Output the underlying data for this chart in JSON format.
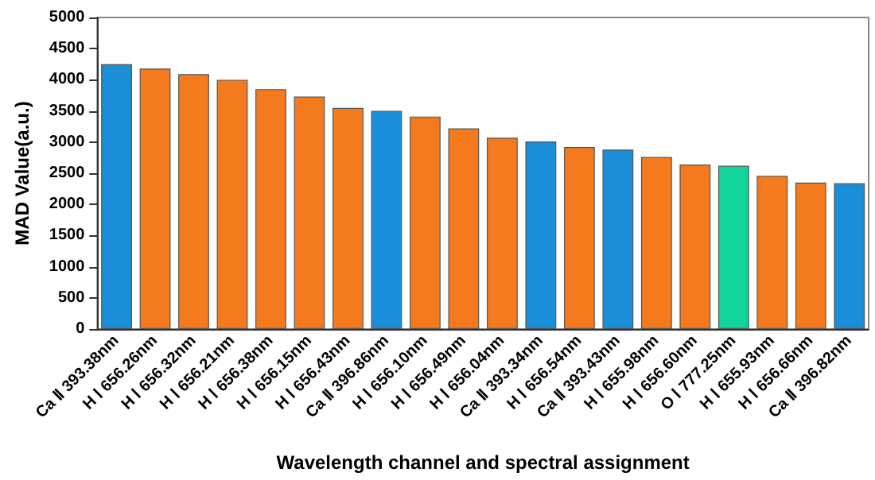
{
  "chart_data": {
    "type": "bar",
    "xlabel": "Wavelength channel and spectral assignment",
    "ylabel": "MAD Value(a.u.)",
    "categories": [
      "Ca Ⅱ 393.38nm",
      "H Ⅰ 656.26nm",
      "H Ⅰ 656.32nm",
      "H Ⅰ 656.21nm",
      "H Ⅰ 656.38nm",
      "H Ⅰ 656.15nm",
      "H Ⅰ 656.43nm",
      "Ca Ⅱ 396.86nm",
      "H Ⅰ 656.10nm",
      "H Ⅰ 656.49nm",
      "H Ⅰ 656.04nm",
      "Ca Ⅱ 393.34nm",
      "H Ⅰ 656.54nm",
      "Ca Ⅱ 393.43nm",
      "H Ⅰ 655.98nm",
      "H Ⅰ 656.60nm",
      "O Ⅰ 777.25nm",
      "H Ⅰ 655.93nm",
      "H Ⅰ 656.66nm",
      "Ca Ⅱ 396.82nm"
    ],
    "values": [
      4250,
      4180,
      4090,
      4000,
      3850,
      3730,
      3550,
      3500,
      3410,
      3220,
      3070,
      3010,
      2920,
      2880,
      2760,
      2640,
      2620,
      2460,
      2350,
      2340
    ],
    "colors": [
      "#1a8ed8",
      "#f57a1e",
      "#f57a1e",
      "#f57a1e",
      "#f57a1e",
      "#f57a1e",
      "#f57a1e",
      "#1a8ed8",
      "#f57a1e",
      "#f57a1e",
      "#f57a1e",
      "#1a8ed8",
      "#f57a1e",
      "#1a8ed8",
      "#f57a1e",
      "#f57a1e",
      "#10d49a",
      "#f57a1e",
      "#f57a1e",
      "#1a8ed8"
    ],
    "ylim": [
      0,
      5000
    ],
    "yticks": [
      0,
      500,
      1000,
      1500,
      2000,
      2500,
      3000,
      3500,
      4000,
      4500,
      5000
    ],
    "grid": false
  }
}
